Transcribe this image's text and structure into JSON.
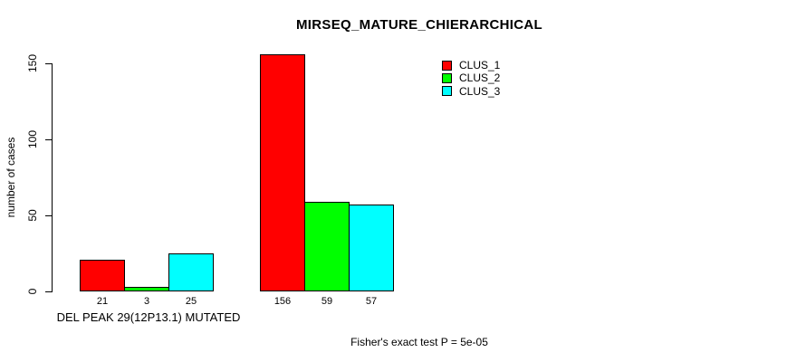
{
  "chart_data": {
    "type": "bar",
    "title": "MIRSEQ_MATURE_CHIERARCHICAL",
    "ylabel": "number of cases",
    "xlabel": "DEL PEAK 29(12P13.1) MUTATED",
    "footnote": "Fisher's exact test P = 5e-05",
    "categories": [
      "DEL PEAK 29(12P13.1) MUTATED",
      ""
    ],
    "series": [
      {
        "name": "CLUS_1",
        "color": "#ff0000",
        "values": [
          21,
          156
        ]
      },
      {
        "name": "CLUS_2",
        "color": "#00ff00",
        "values": [
          3,
          59
        ]
      },
      {
        "name": "CLUS_3",
        "color": "#00ffff",
        "values": [
          25,
          57
        ]
      }
    ],
    "bar_value_labels": [
      [
        21,
        3,
        25
      ],
      [
        156,
        59,
        57
      ]
    ],
    "yticks": [
      0,
      50,
      100,
      150
    ],
    "ylim": [
      0,
      160
    ],
    "grid": false,
    "bar_border_color": "#000000",
    "legend_position": "top-right",
    "legend": [
      {
        "label": "CLUS_1",
        "color": "#ff0000"
      },
      {
        "label": "CLUS_2",
        "color": "#00ff00"
      },
      {
        "label": "CLUS_3",
        "color": "#00ffff"
      }
    ]
  }
}
